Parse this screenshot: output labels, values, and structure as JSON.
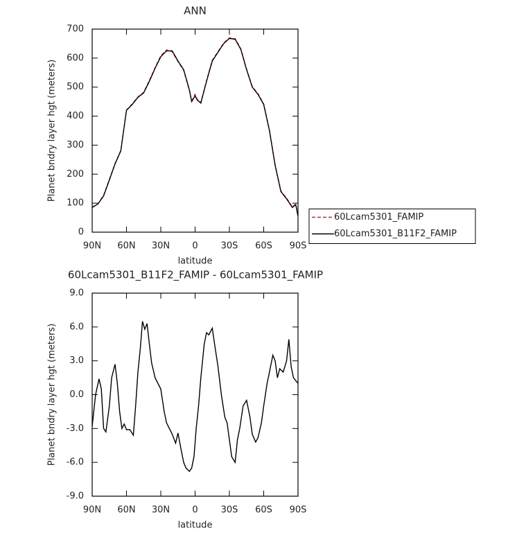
{
  "chart_data": [
    {
      "type": "line",
      "title": "ANN",
      "xlabel": "latitude",
      "ylabel": "Planet bndry layer hgt (meters)",
      "x": [
        90,
        85,
        80,
        75,
        70,
        65,
        60,
        55,
        50,
        45,
        40,
        35,
        30,
        25,
        20,
        15,
        10,
        5,
        3,
        0,
        -2,
        -5,
        -10,
        -15,
        -20,
        -25,
        -30,
        -35,
        -40,
        -45,
        -50,
        -55,
        -60,
        -65,
        -70,
        -75,
        -80,
        -85,
        -88,
        -90
      ],
      "series": [
        {
          "name": "60Lcam5301_FAMIP",
          "color": "#e41a1c",
          "dash": true,
          "values": [
            86,
            98,
            127,
            182,
            237,
            282,
            421,
            442,
            466,
            482,
            523,
            567,
            608,
            628,
            622,
            588,
            558,
            488,
            452,
            475,
            457,
            447,
            522,
            593,
            622,
            652,
            670,
            667,
            632,
            562,
            502,
            477,
            442,
            352,
            232,
            142,
            117,
            87,
            97,
            56
          ]
        },
        {
          "name": "60Lcam5301_B11F2_FAMIP",
          "color": "#000000",
          "dash": false,
          "values": [
            85,
            97,
            125,
            180,
            235,
            280,
            420,
            440,
            465,
            480,
            520,
            565,
            605,
            625,
            625,
            590,
            560,
            490,
            450,
            470,
            455,
            445,
            520,
            590,
            620,
            650,
            668,
            665,
            630,
            560,
            500,
            475,
            440,
            350,
            230,
            140,
            115,
            85,
            95,
            55
          ]
        }
      ],
      "legend": "right",
      "xlim": [
        90,
        -90
      ],
      "xticks": [
        {
          "value": 90,
          "label": "90N"
        },
        {
          "value": 60,
          "label": "60N"
        },
        {
          "value": 30,
          "label": "30N"
        },
        0,
        {
          "value": -30,
          "label": "30S"
        },
        {
          "value": -60,
          "label": "60S"
        },
        {
          "value": -90,
          "label": "90S"
        }
      ],
      "ylim": [
        0,
        700
      ],
      "yticks": [
        0,
        100,
        200,
        300,
        400,
        500,
        600,
        700
      ]
    },
    {
      "type": "line",
      "title": "60Lcam5301_B11F2_FAMIP - 60Lcam5301_FAMIP",
      "xlabel": "latitude",
      "ylabel": "Planet bndry layer hgt (meters)",
      "x": [
        90,
        87,
        84,
        82,
        80,
        78,
        75,
        73,
        70,
        68,
        66,
        64,
        62,
        60,
        57,
        54,
        52,
        50,
        48,
        46,
        44,
        42,
        40,
        38,
        35,
        30,
        27,
        25,
        20,
        17,
        15,
        12,
        10,
        8,
        5,
        3,
        1,
        -1,
        -3,
        -5,
        -8,
        -10,
        -12,
        -15,
        -17,
        -20,
        -23,
        -26,
        -28,
        -30,
        -32,
        -35,
        -37,
        -39,
        -42,
        -45,
        -48,
        -50,
        -53,
        -55,
        -58,
        -60,
        -63,
        -65,
        -68,
        -70,
        -72,
        -74,
        -77,
        -80,
        -82,
        -84,
        -86,
        -90
      ],
      "series": [
        {
          "color": "#000000",
          "values": [
            -2.8,
            0,
            1.4,
            0.5,
            -3.0,
            -3.3,
            -1,
            1.5,
            2.7,
            1,
            -1.5,
            -3,
            -2.6,
            -3.1,
            -3.1,
            -3.6,
            -1,
            2,
            4,
            6.5,
            5.8,
            6.3,
            4.5,
            2.8,
            1.5,
            0.5,
            -1.5,
            -2.5,
            -3.5,
            -4.3,
            -3.4,
            -5,
            -6,
            -6.5,
            -6.8,
            -6.5,
            -5.5,
            -3,
            -1,
            1.5,
            4.5,
            5.5,
            5.3,
            5.9,
            4.5,
            2.5,
            0,
            -2,
            -2.5,
            -4,
            -5.5,
            -6,
            -4,
            -3,
            -1,
            -0.5,
            -2,
            -3.5,
            -4.2,
            -3.8,
            -2.5,
            -1,
            1,
            2,
            3.5,
            3,
            1.5,
            2.3,
            2,
            3,
            4.9,
            2.5,
            1.5,
            1
          ]
        }
      ],
      "xlim": [
        90,
        -90
      ],
      "xticks": [
        {
          "value": 90,
          "label": "90N"
        },
        {
          "value": 60,
          "label": "60N"
        },
        {
          "value": 30,
          "label": "30N"
        },
        0,
        {
          "value": -30,
          "label": "30S"
        },
        {
          "value": -60,
          "label": "60S"
        },
        {
          "value": -90,
          "label": "90S"
        }
      ],
      "ylim": [
        -9,
        9
      ],
      "yticks": [
        {
          "value": -9,
          "label": "-9.0"
        },
        {
          "value": -6,
          "label": "-6.0"
        },
        {
          "value": -3,
          "label": "-3.0"
        },
        {
          "value": 0,
          "label": "0.0"
        },
        {
          "value": 3,
          "label": "3.0"
        },
        {
          "value": 6,
          "label": "6.0"
        },
        {
          "value": 9,
          "label": "9.0"
        }
      ]
    }
  ]
}
